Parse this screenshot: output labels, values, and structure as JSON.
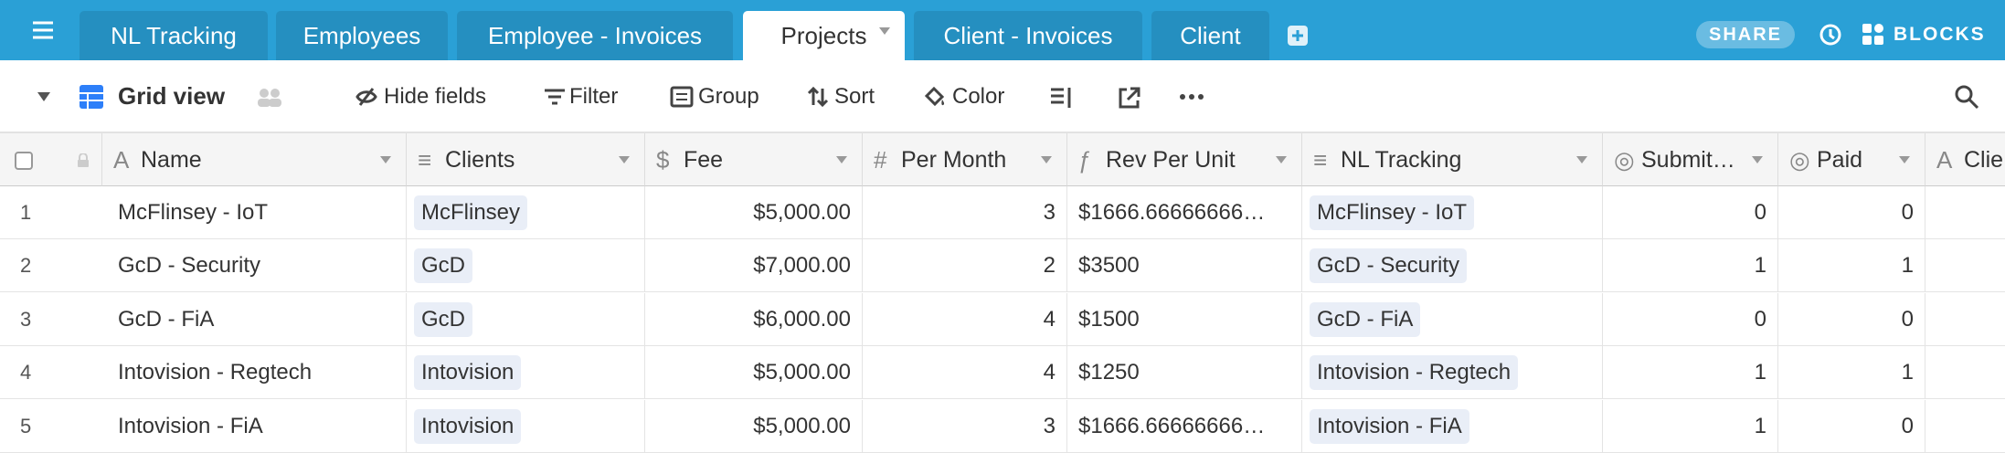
{
  "tabs": [
    {
      "label": "NL Tracking"
    },
    {
      "label": "Employees"
    },
    {
      "label": "Employee - Invoices"
    },
    {
      "label": "Projects",
      "active": true
    },
    {
      "label": "Client - Invoices"
    },
    {
      "label": "Client"
    }
  ],
  "share": "SHARE",
  "blocks": "BLOCKS",
  "toolbar": {
    "view": "Grid view",
    "items": [
      "Hide fields",
      "Filter",
      "Group",
      "Sort",
      "Color"
    ]
  },
  "table": {
    "columns": [
      "Name",
      "Clients",
      "Fee",
      "Per Month",
      "Rev Per Unit",
      "NL Tracking",
      "Submit…",
      "Paid",
      "Clie"
    ],
    "rows": [
      [
        "1",
        "McFlinsey - IoT",
        "McFlinsey",
        "$5,000.00",
        "3",
        "$1666.66666666…",
        "McFlinsey - IoT",
        "0",
        "0"
      ],
      [
        "2",
        "GcD - Security",
        "GcD",
        "$7,000.00",
        "2",
        "$3500",
        "GcD - Security",
        "1",
        "1"
      ],
      [
        "3",
        "GcD - FiA",
        "GcD",
        "$6,000.00",
        "4",
        "$1500",
        "GcD - FiA",
        "0",
        "0"
      ],
      [
        "4",
        "Intovision - Regtech",
        "Intovision",
        "$5,000.00",
        "4",
        "$1250",
        "Intovision - Regtech",
        "1",
        "1"
      ],
      [
        "5",
        "Intovision - FiA",
        "Intovision",
        "$5,000.00",
        "3",
        "$1666.66666666…",
        "Intovision - FiA",
        "1",
        "0"
      ]
    ]
  }
}
